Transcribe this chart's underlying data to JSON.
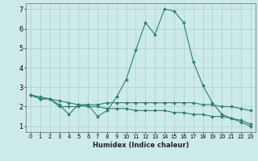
{
  "xlabel": "Humidex (Indice chaleur)",
  "background_color": "#cceae8",
  "grid_color": "#aacfcc",
  "line_color": "#2e7d72",
  "xlim_min": -0.5,
  "xlim_max": 23.5,
  "ylim_min": 0.7,
  "ylim_max": 7.3,
  "yticks": [
    1,
    2,
    3,
    4,
    5,
    6,
    7
  ],
  "xticks": [
    0,
    1,
    2,
    3,
    4,
    5,
    6,
    7,
    8,
    9,
    10,
    11,
    12,
    13,
    14,
    15,
    16,
    17,
    18,
    19,
    20,
    21,
    22,
    23
  ],
  "line1_x": [
    0,
    1,
    2,
    3,
    4,
    5,
    6,
    7,
    8,
    9,
    10,
    11,
    12,
    13,
    14,
    15,
    16,
    17,
    18,
    19,
    20,
    21,
    22,
    23
  ],
  "line1_y": [
    2.6,
    2.4,
    2.4,
    2.1,
    1.6,
    2.1,
    2.1,
    1.5,
    1.8,
    2.5,
    3.4,
    4.9,
    6.3,
    5.7,
    7.0,
    6.9,
    6.3,
    4.3,
    3.1,
    2.2,
    1.6,
    1.4,
    1.2,
    1.0
  ],
  "line2_x": [
    0,
    1,
    2,
    3,
    4,
    5,
    6,
    7,
    8,
    9,
    10,
    11,
    12,
    13,
    14,
    15,
    16,
    17,
    18,
    19,
    20,
    21,
    22,
    23
  ],
  "line2_y": [
    2.6,
    2.4,
    2.4,
    2.0,
    2.0,
    2.0,
    2.1,
    2.1,
    2.2,
    2.2,
    2.2,
    2.2,
    2.2,
    2.2,
    2.2,
    2.2,
    2.2,
    2.2,
    2.1,
    2.1,
    2.0,
    2.0,
    1.9,
    1.8
  ],
  "line3_x": [
    0,
    1,
    2,
    3,
    4,
    5,
    6,
    7,
    8,
    9,
    10,
    11,
    12,
    13,
    14,
    15,
    16,
    17,
    18,
    19,
    20,
    21,
    22,
    23
  ],
  "line3_y": [
    2.6,
    2.5,
    2.4,
    2.3,
    2.2,
    2.1,
    2.0,
    2.0,
    1.9,
    1.9,
    1.9,
    1.8,
    1.8,
    1.8,
    1.8,
    1.7,
    1.7,
    1.6,
    1.6,
    1.5,
    1.5,
    1.4,
    1.3,
    1.1
  ],
  "marker_size": 2.0,
  "line_width": 0.8,
  "xlabel_fontsize": 6.0,
  "tick_fontsize_x": 4.8,
  "tick_fontsize_y": 6.0
}
